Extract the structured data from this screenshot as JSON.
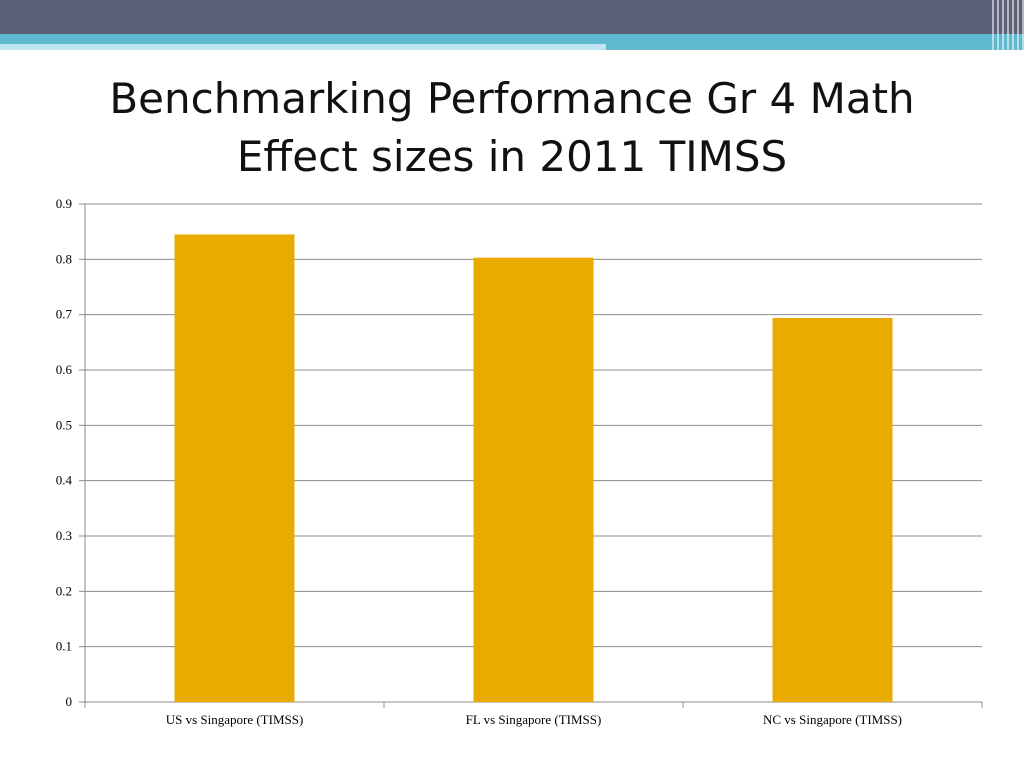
{
  "slide": {
    "title_line1": "Benchmarking Performance Gr 4 Math",
    "title_line2": "Effect sizes in 2011 TIMSS"
  },
  "colors": {
    "header_band": "#5b6278",
    "accent_band": "#5eb9cf",
    "bar": "#eaab00",
    "gridline": "#8c8c8c"
  },
  "chart_data": {
    "type": "bar",
    "categories": [
      "US vs Singapore (TIMSS)",
      "FL vs Singapore (TIMSS)",
      "NC vs Singapore (TIMSS)"
    ],
    "values": [
      0.845,
      0.803,
      0.694
    ],
    "ylim": [
      0,
      0.9
    ],
    "yticks": [
      "0",
      "0.1",
      "0.2",
      "0.3",
      "0.4",
      "0.5",
      "0.6",
      "0.7",
      "0.8",
      "0.9"
    ],
    "grid": true,
    "legend": "none"
  }
}
